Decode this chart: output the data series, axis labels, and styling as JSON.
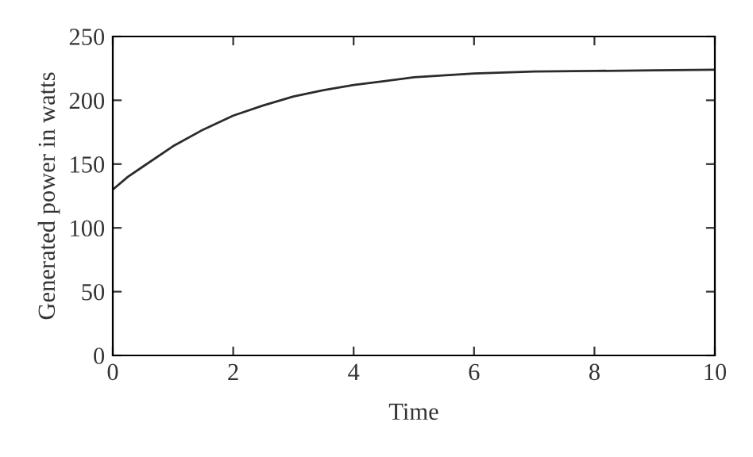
{
  "chart_data": {
    "type": "line",
    "xlabel": "Time",
    "ylabel": "Generated power in watts",
    "x": [
      0,
      0.25,
      0.5,
      1,
      1.5,
      2,
      2.5,
      3,
      3.5,
      4,
      4.5,
      5,
      6,
      7,
      8,
      9,
      10
    ],
    "series": [
      {
        "color": "#2b2b2b",
        "values": [
          130,
          140,
          148,
          164,
          177,
          188,
          196,
          203,
          208,
          212,
          215,
          218,
          221,
          222.5,
          223,
          223.5,
          224
        ]
      }
    ],
    "xlim": [
      0,
      10
    ],
    "xticks": [
      0,
      2,
      4,
      6,
      8,
      10
    ],
    "ylim": [
      0,
      250
    ],
    "yticks": [
      0,
      50,
      100,
      150,
      200,
      250
    ],
    "grid": false,
    "legend": false,
    "marker": "none",
    "line_style": "solid"
  }
}
